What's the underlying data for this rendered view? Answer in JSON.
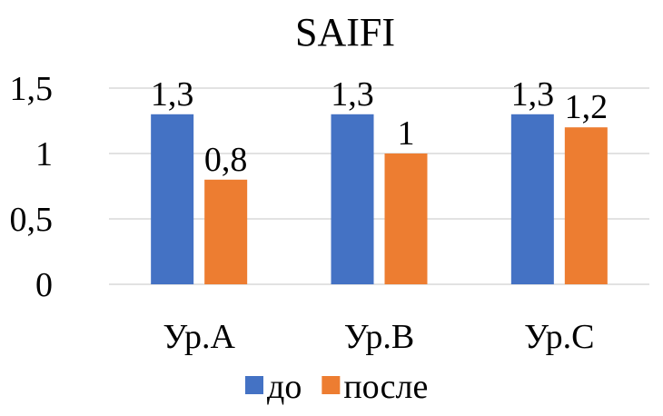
{
  "chart_data": {
    "type": "bar",
    "title": "SAIFI",
    "categories": [
      "Ур.А",
      "Ур.В",
      "Ур.С"
    ],
    "series": [
      {
        "name": "до",
        "values": [
          1.3,
          1.3,
          1.3
        ],
        "labels": [
          "1,3",
          "1,3",
          "1,3"
        ],
        "color": "#4472C4"
      },
      {
        "name": "после",
        "values": [
          0.8,
          1,
          1.2
        ],
        "labels": [
          "0,8",
          "1",
          "1,2"
        ],
        "color": "#ED7D31"
      }
    ],
    "yticks": [
      "0",
      "0,5",
      "1",
      "1,5"
    ],
    "ytick_values": [
      0,
      0.5,
      1,
      1.5
    ],
    "ylim": [
      0,
      1.5
    ],
    "grid": "horizontal",
    "legend": "bottom",
    "gridColor": "#d9d9d9"
  }
}
